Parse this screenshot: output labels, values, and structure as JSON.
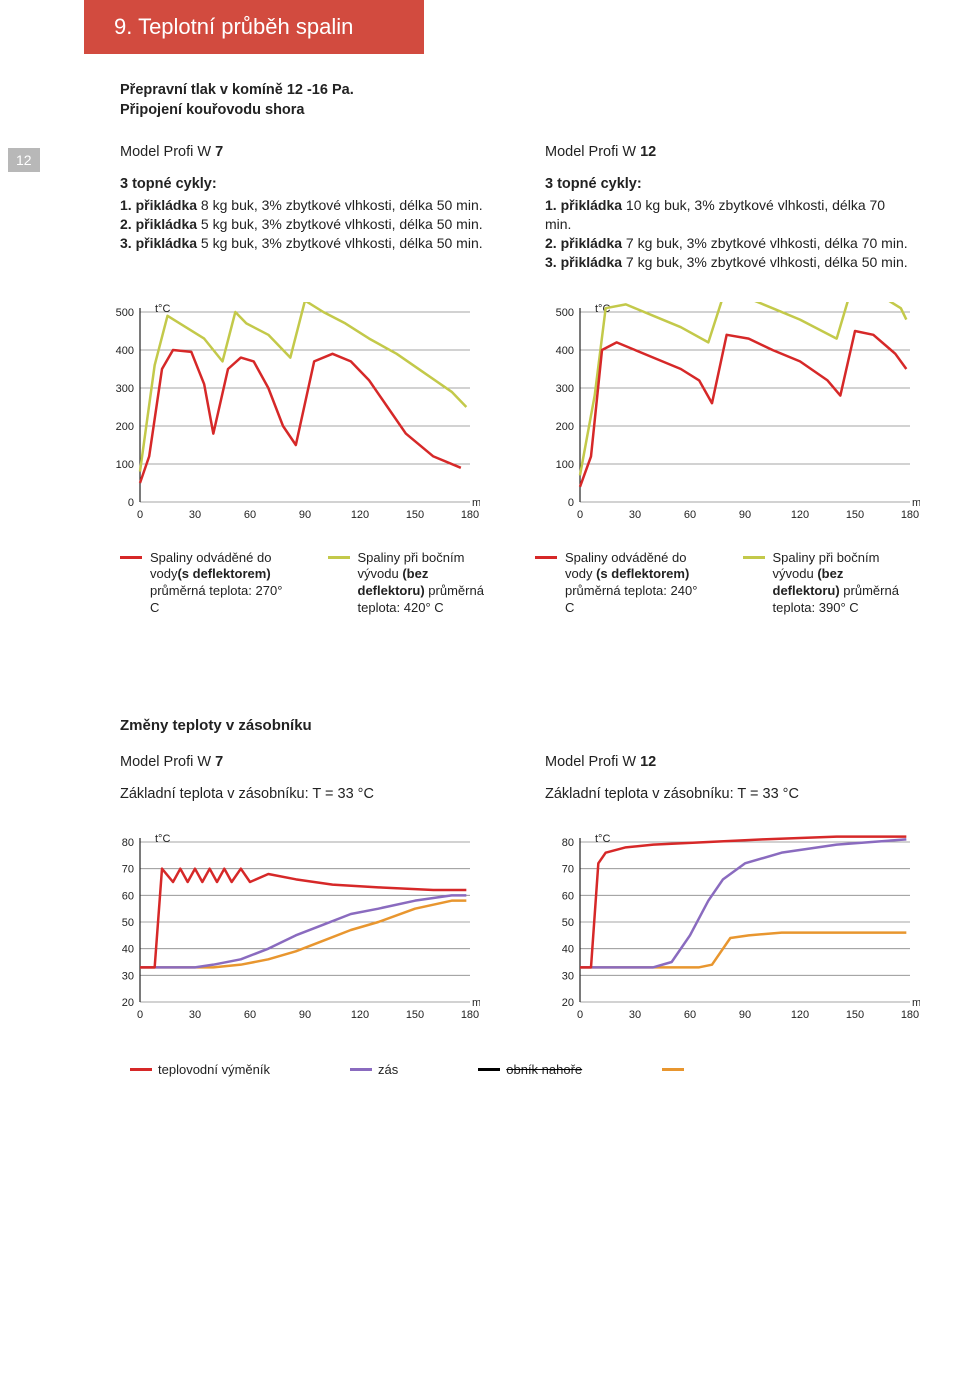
{
  "page_number": "12",
  "title": "9. Teplotní průběh spalin",
  "subtitles": [
    "Přepravní tlak v komíně 12 -16 Pa.",
    "Připojení kouřovodu shora"
  ],
  "models": {
    "left": {
      "title_prefix": "Model Profi W ",
      "title_num": "7",
      "cycles_title": "3  topné cykly:",
      "cycles": [
        {
          "b": "1. přikládka",
          "rest": " 8 kg buk, 3% zbytkové vlhkosti, délka 50 min."
        },
        {
          "b": "2. přikládka",
          "rest": " 5 kg buk, 3% zbytkové vlhkosti, délka 50 min."
        },
        {
          "b": "3. přikládka",
          "rest": " 5 kg buk, 3% zbytkové vlhkosti, délka 50 min."
        }
      ]
    },
    "right": {
      "title_prefix": "Model Profi W ",
      "title_num": "12",
      "cycles_title": "3  topné cykly:",
      "cycles": [
        {
          "b": "1. přikládka",
          "rest": " 10 kg buk, 3% zbytkové vlhkosti, délka 70 min."
        },
        {
          "b": "2. přikládka",
          "rest": " 7 kg buk, 3% zbytkové vlhkosti, délka 70 min."
        },
        {
          "b": "3. přikládka",
          "rest": " 7 kg buk, 3% zbytkové vlhkosti, délka 50 min."
        }
      ]
    }
  },
  "chart_top": {
    "y_label": "t°C",
    "y_ticks": [
      0,
      100,
      200,
      300,
      400,
      500
    ],
    "x_ticks": [
      0,
      30,
      60,
      90,
      120,
      150,
      180
    ],
    "x_unit": "min",
    "grid_color": "#888888",
    "colors": {
      "red": "#d62828",
      "olive": "#c3c94a"
    },
    "left": {
      "red": [
        [
          0,
          50
        ],
        [
          5,
          120
        ],
        [
          12,
          350
        ],
        [
          18,
          400
        ],
        [
          28,
          395
        ],
        [
          35,
          310
        ],
        [
          40,
          180
        ],
        [
          48,
          350
        ],
        [
          55,
          380
        ],
        [
          62,
          370
        ],
        [
          70,
          300
        ],
        [
          78,
          200
        ],
        [
          85,
          150
        ],
        [
          95,
          370
        ],
        [
          105,
          390
        ],
        [
          115,
          370
        ],
        [
          125,
          320
        ],
        [
          135,
          250
        ],
        [
          145,
          180
        ],
        [
          160,
          120
        ],
        [
          175,
          90
        ]
      ],
      "olive": [
        [
          0,
          80
        ],
        [
          8,
          360
        ],
        [
          15,
          490
        ],
        [
          25,
          460
        ],
        [
          35,
          430
        ],
        [
          45,
          370
        ],
        [
          52,
          500
        ],
        [
          58,
          470
        ],
        [
          70,
          440
        ],
        [
          82,
          380
        ],
        [
          90,
          530
        ],
        [
          100,
          500
        ],
        [
          112,
          470
        ],
        [
          125,
          430
        ],
        [
          140,
          390
        ],
        [
          155,
          340
        ],
        [
          170,
          290
        ],
        [
          178,
          250
        ]
      ]
    },
    "right": {
      "red": [
        [
          0,
          40
        ],
        [
          6,
          120
        ],
        [
          12,
          400
        ],
        [
          20,
          420
        ],
        [
          30,
          400
        ],
        [
          40,
          380
        ],
        [
          55,
          350
        ],
        [
          65,
          320
        ],
        [
          72,
          260
        ],
        [
          80,
          440
        ],
        [
          92,
          430
        ],
        [
          105,
          400
        ],
        [
          120,
          370
        ],
        [
          135,
          320
        ],
        [
          142,
          280
        ],
        [
          150,
          450
        ],
        [
          160,
          440
        ],
        [
          172,
          390
        ],
        [
          178,
          350
        ]
      ],
      "olive": [
        [
          0,
          70
        ],
        [
          8,
          280
        ],
        [
          14,
          510
        ],
        [
          25,
          520
        ],
        [
          40,
          490
        ],
        [
          55,
          460
        ],
        [
          70,
          420
        ],
        [
          78,
          540
        ],
        [
          90,
          540
        ],
        [
          105,
          510
        ],
        [
          120,
          480
        ],
        [
          140,
          430
        ],
        [
          148,
          560
        ],
        [
          160,
          555
        ],
        [
          175,
          510
        ],
        [
          178,
          480
        ]
      ]
    }
  },
  "legend_top": {
    "left": [
      {
        "color": "#d62828",
        "line1": "Spaliny odváděné do vody",
        "bold": "(s deflektorem)",
        "line2": " průměrná teplota: 270° C"
      },
      {
        "color": "#c3c94a",
        "line1": "Spaliny při bočním vývodu ",
        "bold": "(bez deflektoru)",
        "line2": " průměrná teplota: 420° C"
      }
    ],
    "right": [
      {
        "color": "#d62828",
        "line1": "Spaliny odváděné do vody ",
        "bold": "(s deflektorem)",
        "line2": " průměrná teplota: 240° C"
      },
      {
        "color": "#c3c94a",
        "line1": "Spaliny při bočním vývodu ",
        "bold": "(bez deflektoru)",
        "line2": " průměrná teplota: 390° C"
      }
    ]
  },
  "section2": {
    "heading": "Změny teploty v zásobníku",
    "left_model_prefix": "Model Profi W ",
    "left_model_num": "7",
    "left_base": "Základní teplota v zásobníku: T = 33 °C",
    "right_model_prefix": "Model Profi W ",
    "right_model_num": "12",
    "right_base": "Základní teplota v zásobníku: T = 33 °C"
  },
  "chart_bottom": {
    "y_label": "t°C",
    "y_ticks": [
      20,
      30,
      40,
      50,
      60,
      70,
      80
    ],
    "x_ticks": [
      0,
      30,
      60,
      90,
      120,
      150,
      180
    ],
    "x_unit_left": "min.",
    "x_unit_right": "min",
    "colors": {
      "red": "#d62828",
      "purple": "#8a6bbf",
      "orange": "#e8962f"
    },
    "left": {
      "red": [
        [
          0,
          33
        ],
        [
          8,
          33
        ],
        [
          12,
          70
        ],
        [
          18,
          65
        ],
        [
          22,
          70
        ],
        [
          26,
          65
        ],
        [
          30,
          70
        ],
        [
          34,
          65
        ],
        [
          38,
          70
        ],
        [
          42,
          65
        ],
        [
          46,
          70
        ],
        [
          50,
          65
        ],
        [
          55,
          70
        ],
        [
          60,
          65
        ],
        [
          70,
          68
        ],
        [
          85,
          66
        ],
        [
          105,
          64
        ],
        [
          130,
          63
        ],
        [
          160,
          62
        ],
        [
          178,
          62
        ]
      ],
      "purple": [
        [
          0,
          33
        ],
        [
          30,
          33
        ],
        [
          40,
          34
        ],
        [
          55,
          36
        ],
        [
          70,
          40
        ],
        [
          85,
          45
        ],
        [
          100,
          49
        ],
        [
          115,
          53
        ],
        [
          130,
          55
        ],
        [
          150,
          58
        ],
        [
          170,
          60
        ],
        [
          178,
          60
        ]
      ],
      "orange": [
        [
          0,
          33
        ],
        [
          40,
          33
        ],
        [
          55,
          34
        ],
        [
          70,
          36
        ],
        [
          85,
          39
        ],
        [
          100,
          43
        ],
        [
          115,
          47
        ],
        [
          130,
          50
        ],
        [
          150,
          55
        ],
        [
          170,
          58
        ],
        [
          178,
          58
        ]
      ]
    },
    "right": {
      "red": [
        [
          0,
          33
        ],
        [
          6,
          33
        ],
        [
          10,
          72
        ],
        [
          14,
          76
        ],
        [
          25,
          78
        ],
        [
          40,
          79
        ],
        [
          70,
          80
        ],
        [
          100,
          81
        ],
        [
          140,
          82
        ],
        [
          178,
          82
        ]
      ],
      "purple": [
        [
          0,
          33
        ],
        [
          40,
          33
        ],
        [
          50,
          35
        ],
        [
          60,
          45
        ],
        [
          70,
          58
        ],
        [
          78,
          66
        ],
        [
          90,
          72
        ],
        [
          110,
          76
        ],
        [
          140,
          79
        ],
        [
          178,
          81
        ]
      ],
      "orange": [
        [
          0,
          33
        ],
        [
          65,
          33
        ],
        [
          72,
          34
        ],
        [
          82,
          44
        ],
        [
          92,
          45
        ],
        [
          110,
          46
        ],
        [
          130,
          46
        ],
        [
          150,
          46
        ],
        [
          178,
          46
        ]
      ]
    }
  },
  "legend_bottom": [
    {
      "color": "#d62828",
      "label": "teplovodní výměník"
    },
    {
      "color": "#8a6bbf",
      "label": "zás"
    },
    {
      "color": "#000000",
      "label": "obník nahoře",
      "strike": true
    },
    {
      "color": "#e8962f",
      "label": ""
    }
  ]
}
